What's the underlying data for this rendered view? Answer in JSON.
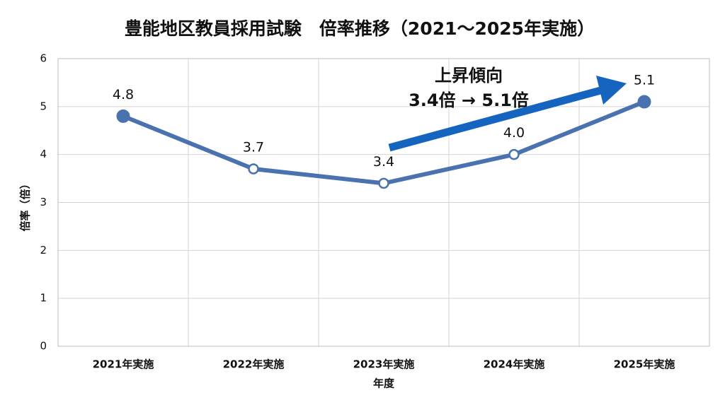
{
  "chart_data": {
    "type": "line",
    "title": "豊能地区教員採用試験　倍率推移（2021～2025年実施）",
    "x_label": "年度",
    "y_label": "倍率（倍）",
    "categories": [
      "2021年実施",
      "2022年実施",
      "2023年実施",
      "2024年実施",
      "2025年実施"
    ],
    "series": [
      {
        "name": "倍率",
        "color": "#4a72b0",
        "values": [
          4.8,
          3.7,
          3.4,
          4.0,
          5.1
        ],
        "value_labels": [
          "4.8",
          "3.7",
          "3.4",
          "4.0",
          "5.1"
        ]
      }
    ],
    "ylim": [
      0,
      6
    ],
    "yticks": [
      0,
      1,
      2,
      3,
      4,
      5,
      6
    ],
    "grid": true,
    "annotations": [
      "上昇傾向",
      "3.4倍 → 5.1倍"
    ],
    "annotation_color": "#1565c0"
  }
}
